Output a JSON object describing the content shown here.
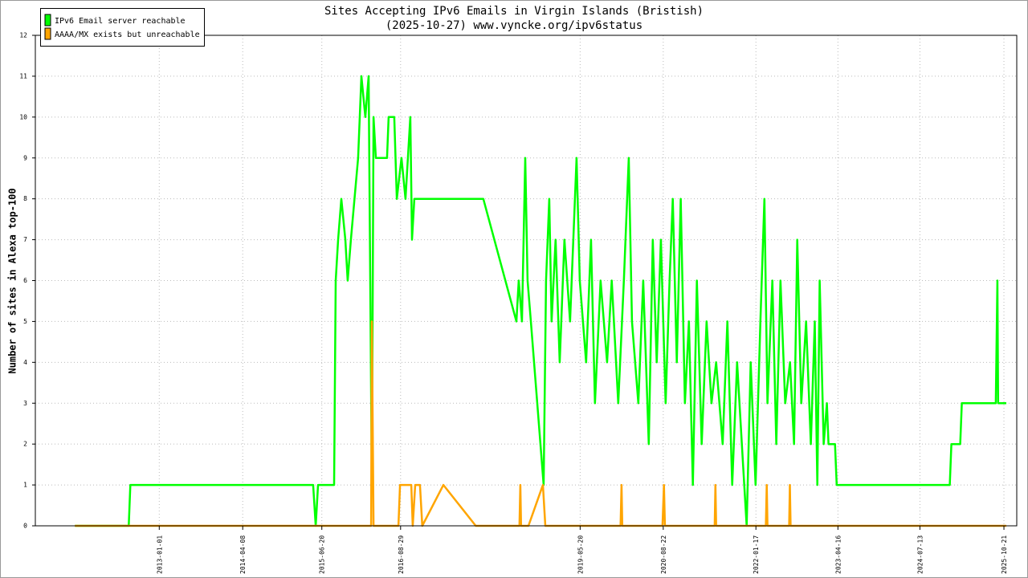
{
  "chart_data": {
    "type": "line",
    "title": "Sites Accepting IPv6 Emails in Virgin Islands (Bristish)",
    "subtitle": "(2025-10-27) www.vyncke.org/ipv6status",
    "y_label": "Number of sites in Alexa top-100",
    "xlim": [
      "2011-02-15",
      "2025-12-31"
    ],
    "xticks": [
      "2013-01-01",
      "2014-04-08",
      "2015-06-20",
      "2016-08-29",
      "2019-05-20",
      "2020-08-22",
      "2022-01-17",
      "2023-04-16",
      "2024-07-13",
      "2025-10-21"
    ],
    "ylim": [
      0,
      12
    ],
    "yticks": [
      0,
      1,
      2,
      3,
      4,
      5,
      6,
      7,
      8,
      9,
      10,
      11,
      12
    ],
    "grid": true,
    "legend": "top-left",
    "series": [
      {
        "name": "IPv6 Email server reachable",
        "color": "#00ff00",
        "x": [
          "2011-09-22",
          "2012-07-16",
          "2012-07-25",
          "2015-05-03",
          "2015-05-17",
          "2015-05-30",
          "2015-08-27",
          "2015-09-05",
          "2015-09-18",
          "2015-10-06",
          "2015-10-28",
          "2015-11-10",
          "2015-11-28",
          "2016-01-07",
          "2016-01-25",
          "2016-02-16",
          "2016-03-05",
          "2016-03-23",
          "2016-04-01",
          "2016-04-14",
          "2016-06-15",
          "2016-06-24",
          "2016-07-25",
          "2016-08-08",
          "2016-09-03",
          "2016-09-25",
          "2016-10-22",
          "2016-10-31",
          "2016-11-13",
          "2017-11-30",
          "2018-06-01",
          "2018-06-14",
          "2018-07-02",
          "2018-07-20",
          "2018-08-02",
          "2018-08-20",
          "2018-10-30",
          "2018-11-12",
          "2018-11-30",
          "2018-12-13",
          "2019-01-04",
          "2019-01-27",
          "2019-02-22",
          "2019-03-25",
          "2019-04-30",
          "2019-05-18",
          "2019-06-22",
          "2019-07-19",
          "2019-08-10",
          "2019-09-10",
          "2019-10-16",
          "2019-11-11",
          "2019-12-17",
          "2020-01-17",
          "2020-02-13",
          "2020-03-02",
          "2020-04-06",
          "2020-05-03",
          "2020-06-03",
          "2020-06-25",
          "2020-07-17",
          "2020-08-09",
          "2020-09-04",
          "2020-09-26",
          "2020-10-14",
          "2020-11-05",
          "2020-11-27",
          "2020-12-20",
          "2021-01-11",
          "2021-02-02",
          "2021-02-24",
          "2021-03-23",
          "2021-04-19",
          "2021-05-16",
          "2021-06-11",
          "2021-07-17",
          "2021-08-12",
          "2021-09-08",
          "2021-10-05",
          "2021-10-31",
          "2021-11-27",
          "2021-12-19",
          "2022-01-15",
          "2022-02-11",
          "2022-03-05",
          "2022-03-22",
          "2022-04-18",
          "2022-05-10",
          "2022-06-02",
          "2022-06-28",
          "2022-07-25",
          "2022-08-16",
          "2022-09-03",
          "2022-09-25",
          "2022-10-22",
          "2022-11-17",
          "2022-12-09",
          "2022-12-23",
          "2023-01-05",
          "2023-01-27",
          "2023-02-14",
          "2023-02-23",
          "2023-03-31",
          "2023-04-09",
          "2024-12-25",
          "2025-01-03",
          "2025-02-21",
          "2025-03-02",
          "2025-09-06",
          "2025-09-15",
          "2025-09-19",
          "2025-11-03"
        ],
        "values": [
          0,
          0,
          1,
          1,
          0,
          1,
          1,
          6,
          7,
          8,
          7,
          6,
          7,
          9,
          11,
          10,
          11,
          1,
          10,
          9,
          9,
          10,
          10,
          8,
          9,
          8,
          10,
          7,
          8,
          8,
          5,
          6,
          5,
          9,
          6,
          5,
          1,
          6,
          8,
          5,
          7,
          4,
          7,
          5,
          9,
          6,
          4,
          7,
          3,
          6,
          4,
          6,
          3,
          6,
          9,
          5,
          3,
          6,
          2,
          7,
          4,
          7,
          3,
          6,
          8,
          4,
          8,
          3,
          5,
          1,
          6,
          2,
          5,
          3,
          4,
          2,
          5,
          1,
          4,
          2,
          0,
          4,
          1,
          5,
          8,
          3,
          6,
          2,
          6,
          3,
          4,
          2,
          7,
          3,
          5,
          2,
          5,
          1,
          6,
          2,
          3,
          2,
          2,
          1,
          1,
          2,
          2,
          3,
          3,
          6,
          3,
          3
        ]
      },
      {
        "name": "AAAA/MX exists but unreachable",
        "color": "#ffa500",
        "x": [
          "2011-09-22",
          "2016-03-19",
          "2016-03-23",
          "2016-04-01",
          "2016-08-17",
          "2016-08-26",
          "2016-10-27",
          "2016-11-04",
          "2016-11-18",
          "2016-12-14",
          "2016-12-27",
          "2017-04-23",
          "2017-10-19",
          "2018-06-18",
          "2018-06-23",
          "2018-06-27",
          "2018-08-07",
          "2018-10-26",
          "2018-11-08",
          "2019-12-30",
          "2020-01-04",
          "2020-01-08",
          "2020-08-18",
          "2020-08-26",
          "2020-08-31",
          "2021-06-03",
          "2021-06-07",
          "2021-06-11",
          "2022-03-13",
          "2022-03-18",
          "2022-03-22",
          "2022-07-20",
          "2022-07-24",
          "2022-07-28",
          "2025-11-03"
        ],
        "values": [
          0,
          0,
          5,
          0,
          0,
          1,
          1,
          0,
          1,
          1,
          0,
          1,
          0,
          0,
          1,
          0,
          0,
          1,
          0,
          0,
          1,
          0,
          0,
          1,
          0,
          0,
          1,
          0,
          0,
          1,
          0,
          0,
          1,
          0,
          0
        ]
      }
    ]
  }
}
